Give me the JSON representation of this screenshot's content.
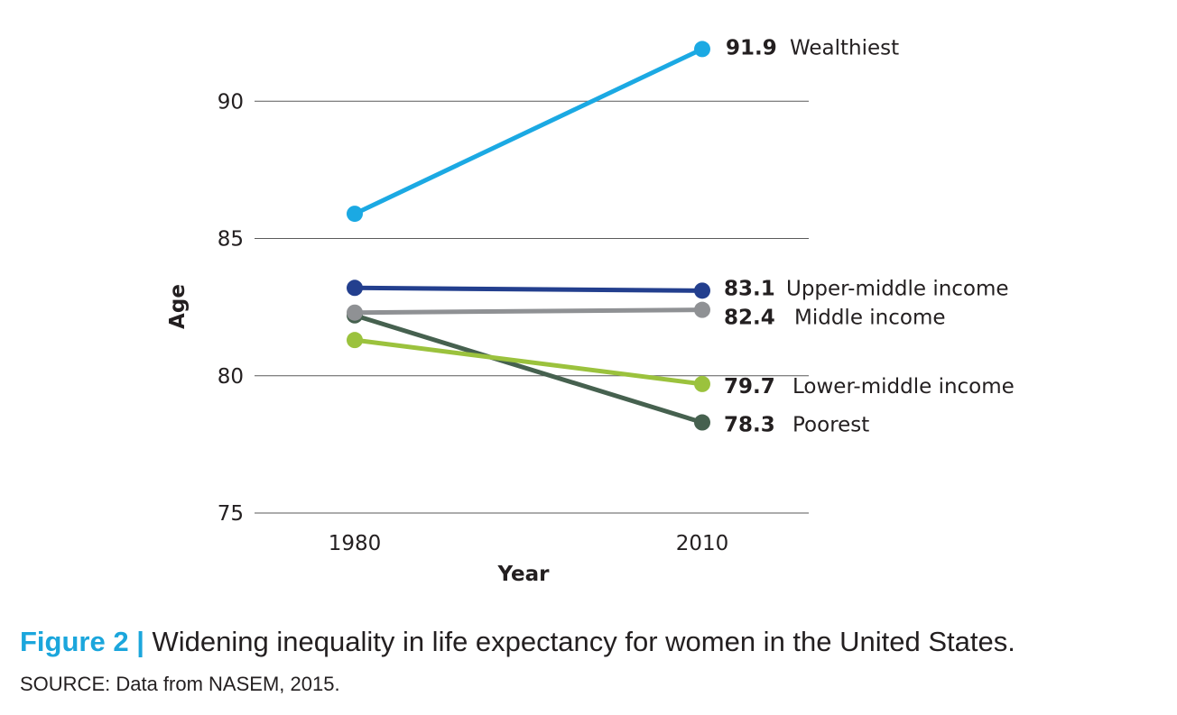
{
  "chart_data": {
    "type": "line",
    "x": [
      "1980",
      "2010"
    ],
    "xlabel": "Year",
    "ylabel": "Age",
    "ylim": [
      75,
      92
    ],
    "yticks": [
      "75",
      "80",
      "85",
      "90"
    ],
    "grid": "horizontal",
    "series": [
      {
        "name": "Wealthiest",
        "values": [
          85.9,
          91.9
        ],
        "end_label": "91.9",
        "color": "#1ba9e3"
      },
      {
        "name": "Upper-middle income",
        "values": [
          83.2,
          83.1
        ],
        "end_label": "83.1",
        "color": "#233f8e"
      },
      {
        "name": "Middle income",
        "values": [
          82.3,
          82.4
        ],
        "end_label": "82.4",
        "color": "#8f9194"
      },
      {
        "name": "Lower-middle income",
        "values": [
          81.3,
          79.7
        ],
        "end_label": "79.7",
        "color": "#9bc23d"
      },
      {
        "name": "Poorest",
        "values": [
          82.2,
          78.3
        ],
        "end_label": "78.3",
        "color": "#46614f"
      }
    ]
  },
  "caption": {
    "figure_label": "Figure 2 |",
    "text": "Widening inequality in life expectancy for women in the United States."
  },
  "source": "SOURCE: Data from NASEM, 2015."
}
